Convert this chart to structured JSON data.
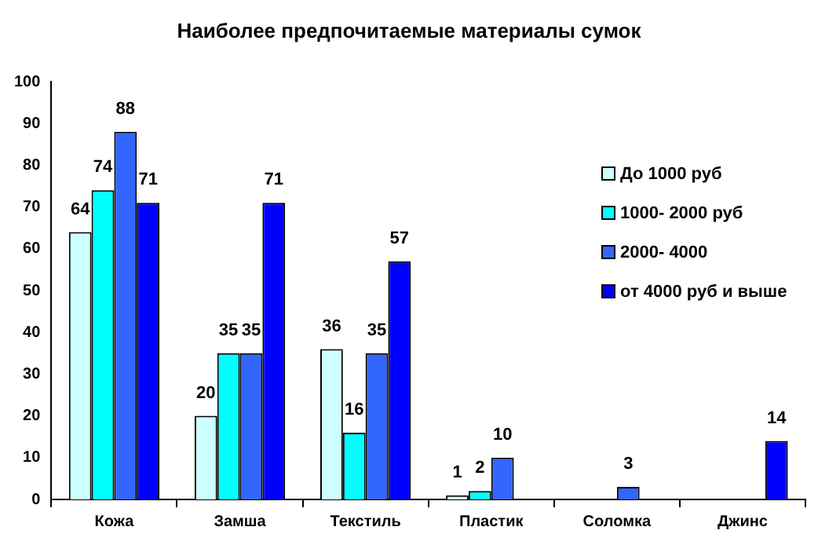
{
  "chart_data": {
    "type": "bar",
    "title": "Наиболее предпочитаемые материалы сумок",
    "categories": [
      "Кожа",
      "Замша",
      "Текстиль",
      "Пластик",
      "Соломка",
      "Джинс"
    ],
    "series": [
      {
        "name": "До 1000 руб",
        "color": "#ccffff",
        "values": [
          64,
          20,
          36,
          1,
          null,
          null
        ]
      },
      {
        "name": "1000- 2000 руб",
        "color": "#00ffff",
        "values": [
          74,
          35,
          16,
          2,
          null,
          null
        ]
      },
      {
        "name": "2000- 4000",
        "color": "#3366ff",
        "values": [
          88,
          35,
          35,
          10,
          3,
          null
        ]
      },
      {
        "name": "от 4000 руб и выше",
        "color": "#0000ff",
        "values": [
          71,
          71,
          57,
          null,
          null,
          14
        ]
      }
    ],
    "ylim": [
      0,
      100
    ],
    "yticks": [
      0,
      10,
      20,
      30,
      40,
      50,
      60,
      70,
      80,
      90,
      100
    ],
    "grid": false,
    "legend": "top right",
    "data_labels": true
  }
}
